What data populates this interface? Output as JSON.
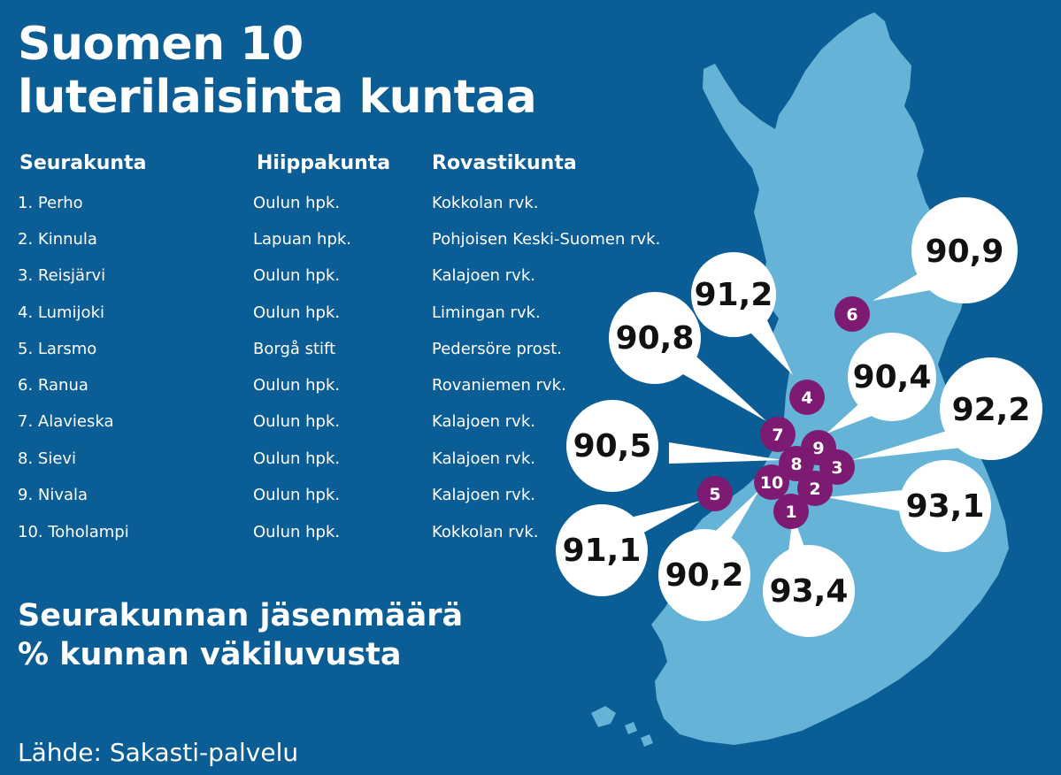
{
  "title": [
    "Suomen 10",
    "luterilaisinta kuntaa"
  ],
  "columns": [
    "Seurakunta",
    "Hiippakunta",
    "Rovastikunta"
  ],
  "rows": [
    {
      "seurakunta": "1. Perho",
      "hiippakunta": "Oulun hpk.",
      "rovastikunta": "Kokkolan rvk."
    },
    {
      "seurakunta": "2. Kinnula",
      "hiippakunta": "Lapuan hpk.",
      "rovastikunta": "Pohjoisen Keski-Suomen rvk."
    },
    {
      "seurakunta": "3. Reisjärvi",
      "hiippakunta": "Oulun hpk.",
      "rovastikunta": "Kalajoen rvk."
    },
    {
      "seurakunta": "4. Lumijoki",
      "hiippakunta": "Oulun hpk.",
      "rovastikunta": "Limingan rvk."
    },
    {
      "seurakunta": "5. Larsmo",
      "hiippakunta": "Borgå stift",
      "rovastikunta": "Pedersöre prost."
    },
    {
      "seurakunta": "6. Ranua",
      "hiippakunta": "Oulun hpk.",
      "rovastikunta": "Rovaniemen rvk."
    },
    {
      "seurakunta": "7. Alavieska",
      "hiippakunta": "Oulun hpk.",
      "rovastikunta": "Kalajoen rvk."
    },
    {
      "seurakunta": "8. Sievi",
      "hiippakunta": "Oulun hpk.",
      "rovastikunta": "Kalajoen rvk."
    },
    {
      "seurakunta": "9. Nivala",
      "hiippakunta": "Oulun hpk.",
      "rovastikunta": "Kalajoen rvk."
    },
    {
      "seurakunta": "10. Toholampi",
      "hiippakunta": "Oulun hpk.",
      "rovastikunta": "Kokkolan rvk."
    }
  ],
  "subtitle": [
    "Seurakunnan jäsenmäärä",
    "% kunnan väkiluvusta"
  ],
  "source": "Lähde: Sakasti-palvelu",
  "markers": [
    {
      "number": "1",
      "value": "93,4"
    },
    {
      "number": "2",
      "value": "93,1"
    },
    {
      "number": "3",
      "value": "92,2"
    },
    {
      "number": "4",
      "value": "91,2"
    },
    {
      "number": "5",
      "value": "91,1"
    },
    {
      "number": "6",
      "value": "90,9"
    },
    {
      "number": "7",
      "value": "90,8"
    },
    {
      "number": "8",
      "value": "90,5"
    },
    {
      "number": "9",
      "value": "90,4"
    },
    {
      "number": "10",
      "value": "90,2"
    }
  ],
  "colors": {
    "background": "#0b5d95",
    "land": "#66b3d8",
    "marker": "#7d1a72",
    "bubble": "#ffffff",
    "text": "#ffffff"
  }
}
